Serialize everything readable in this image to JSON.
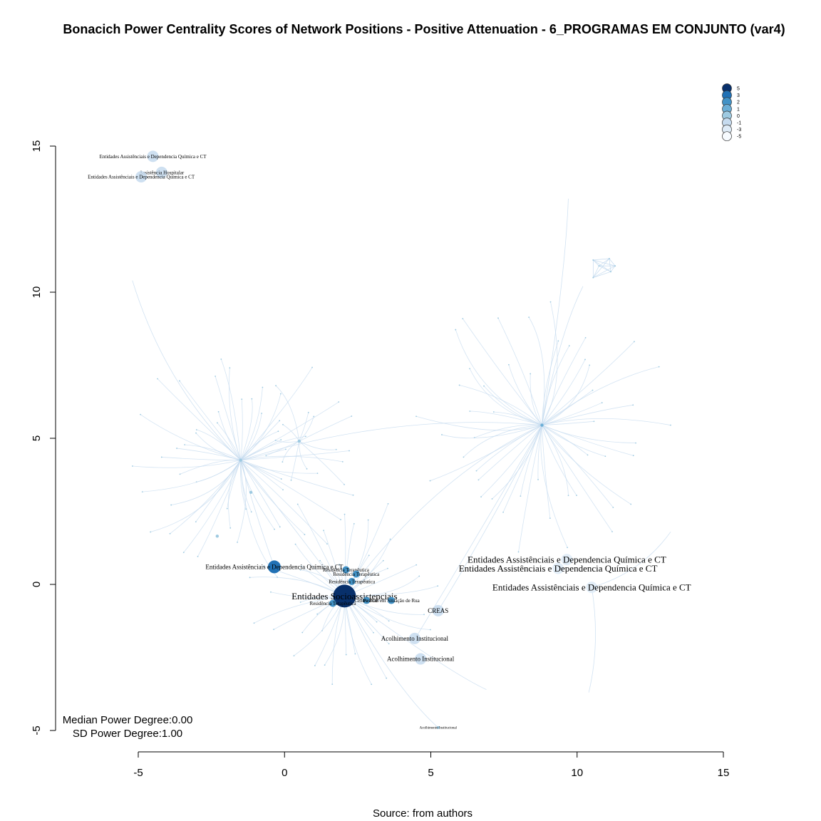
{
  "chart_data": {
    "type": "scatter",
    "title": "Bonacich Power Centrality Scores of Network Positions - Positive Attenuation - 6_PROGRAMAS EM CONJUNTO (var4)",
    "xlabel": "",
    "ylabel": "",
    "xlim": [
      -5,
      15
    ],
    "ylim": [
      -5,
      15
    ],
    "x_ticks": [
      "-5",
      "0",
      "5",
      "10",
      "15"
    ],
    "y_ticks": [
      "-5",
      "0",
      "5",
      "10",
      "15"
    ],
    "grid": false,
    "source_text": "Source: from authors",
    "stats": {
      "median_text": "Median Power Degree:0.00",
      "sd_text": "SD Power Degree:1.00"
    },
    "legend": {
      "position": "top-right",
      "entries": [
        {
          "label": "5",
          "color": "#08306b"
        },
        {
          "label": "3",
          "color": "#2171b5"
        },
        {
          "label": "2",
          "color": "#4292c6"
        },
        {
          "label": "1",
          "color": "#6baed6"
        },
        {
          "label": "0",
          "color": "#9ecae1"
        },
        {
          "label": "-1",
          "color": "#c6dbef"
        },
        {
          "label": "-3",
          "color": "#deebf7"
        },
        {
          "label": "-5",
          "color": "#f7fbff"
        }
      ]
    },
    "nodes": [
      {
        "label": "Entidades Assistênciais e Dependencia Química e CT",
        "x": -4.5,
        "y": 14.65,
        "score": -1,
        "r": 8,
        "fs": 7
      },
      {
        "label": "Assistência Hospitalar",
        "x": -4.2,
        "y": 14.1,
        "score": -1,
        "r": 8,
        "fs": 7
      },
      {
        "label": "Entidades Assistênciais e Dependencia Química e CT",
        "x": -4.9,
        "y": 13.95,
        "score": -1,
        "r": 8,
        "fs": 7
      },
      {
        "label": "Entidades Assistênciais e Dependencia Química e CT",
        "x": -0.35,
        "y": 0.6,
        "score": 3,
        "r": 9,
        "fs": 9
      },
      {
        "label": "Entidades Socioassistenciais",
        "x": 2.05,
        "y": -0.4,
        "score": 5,
        "r": 16,
        "fs": 13
      },
      {
        "label": "Residência Terapêutica",
        "x": 2.1,
        "y": 0.5,
        "score": 2,
        "r": 5,
        "fs": 7
      },
      {
        "label": "Residência Terapêutica",
        "x": 2.45,
        "y": 0.35,
        "score": 2,
        "r": 5,
        "fs": 7
      },
      {
        "label": "Residência Terapêutica",
        "x": 2.3,
        "y": 0.1,
        "score": 2,
        "r": 5,
        "fs": 7
      },
      {
        "label": "Residência Terapêutica",
        "x": 1.65,
        "y": -0.65,
        "score": 2,
        "r": 5,
        "fs": 7
      },
      {
        "label": "Centro POP",
        "x": 2.8,
        "y": -0.55,
        "score": 2,
        "r": 5,
        "fs": 7
      },
      {
        "label": "Pessoas em Situação de Rua",
        "x": 3.65,
        "y": -0.55,
        "score": 2,
        "r": 5,
        "fs": 7
      },
      {
        "label": "CREAS",
        "x": 5.25,
        "y": -0.9,
        "score": -1,
        "r": 8,
        "fs": 9
      },
      {
        "label": "Acolhimento Institucional",
        "x": 4.45,
        "y": -1.85,
        "score": -1,
        "r": 8,
        "fs": 9
      },
      {
        "label": "Acolhimento Institucional",
        "x": 4.65,
        "y": -2.55,
        "score": -1,
        "r": 8,
        "fs": 9
      },
      {
        "label": "Acolhimento Institucional",
        "x": 5.25,
        "y": -4.9,
        "score": 0,
        "r": 2,
        "fs": 5
      },
      {
        "label": "Entidades Assistênciais e Dependencia Química e CT",
        "x": 9.65,
        "y": 0.85,
        "score": -3,
        "r": 8,
        "fs": 13
      },
      {
        "label": "Entidades Assistênciais e Dependencia Química e CT",
        "x": 9.35,
        "y": 0.55,
        "score": -3,
        "r": 8,
        "fs": 13
      },
      {
        "label": "Entidades Assistênciais e Dependencia Química e CT",
        "x": 10.5,
        "y": -0.1,
        "score": -3,
        "r": 8,
        "fs": 13
      }
    ],
    "hubs": [
      {
        "x": 8.8,
        "y": 5.45,
        "score": 1
      },
      {
        "x": -1.5,
        "y": 4.25,
        "score": 0
      },
      {
        "x": 0.5,
        "y": 4.9,
        "score": 0
      },
      {
        "x": -2.3,
        "y": 1.65,
        "score": 0
      },
      {
        "x": -1.15,
        "y": 3.15,
        "score": 0
      }
    ]
  }
}
